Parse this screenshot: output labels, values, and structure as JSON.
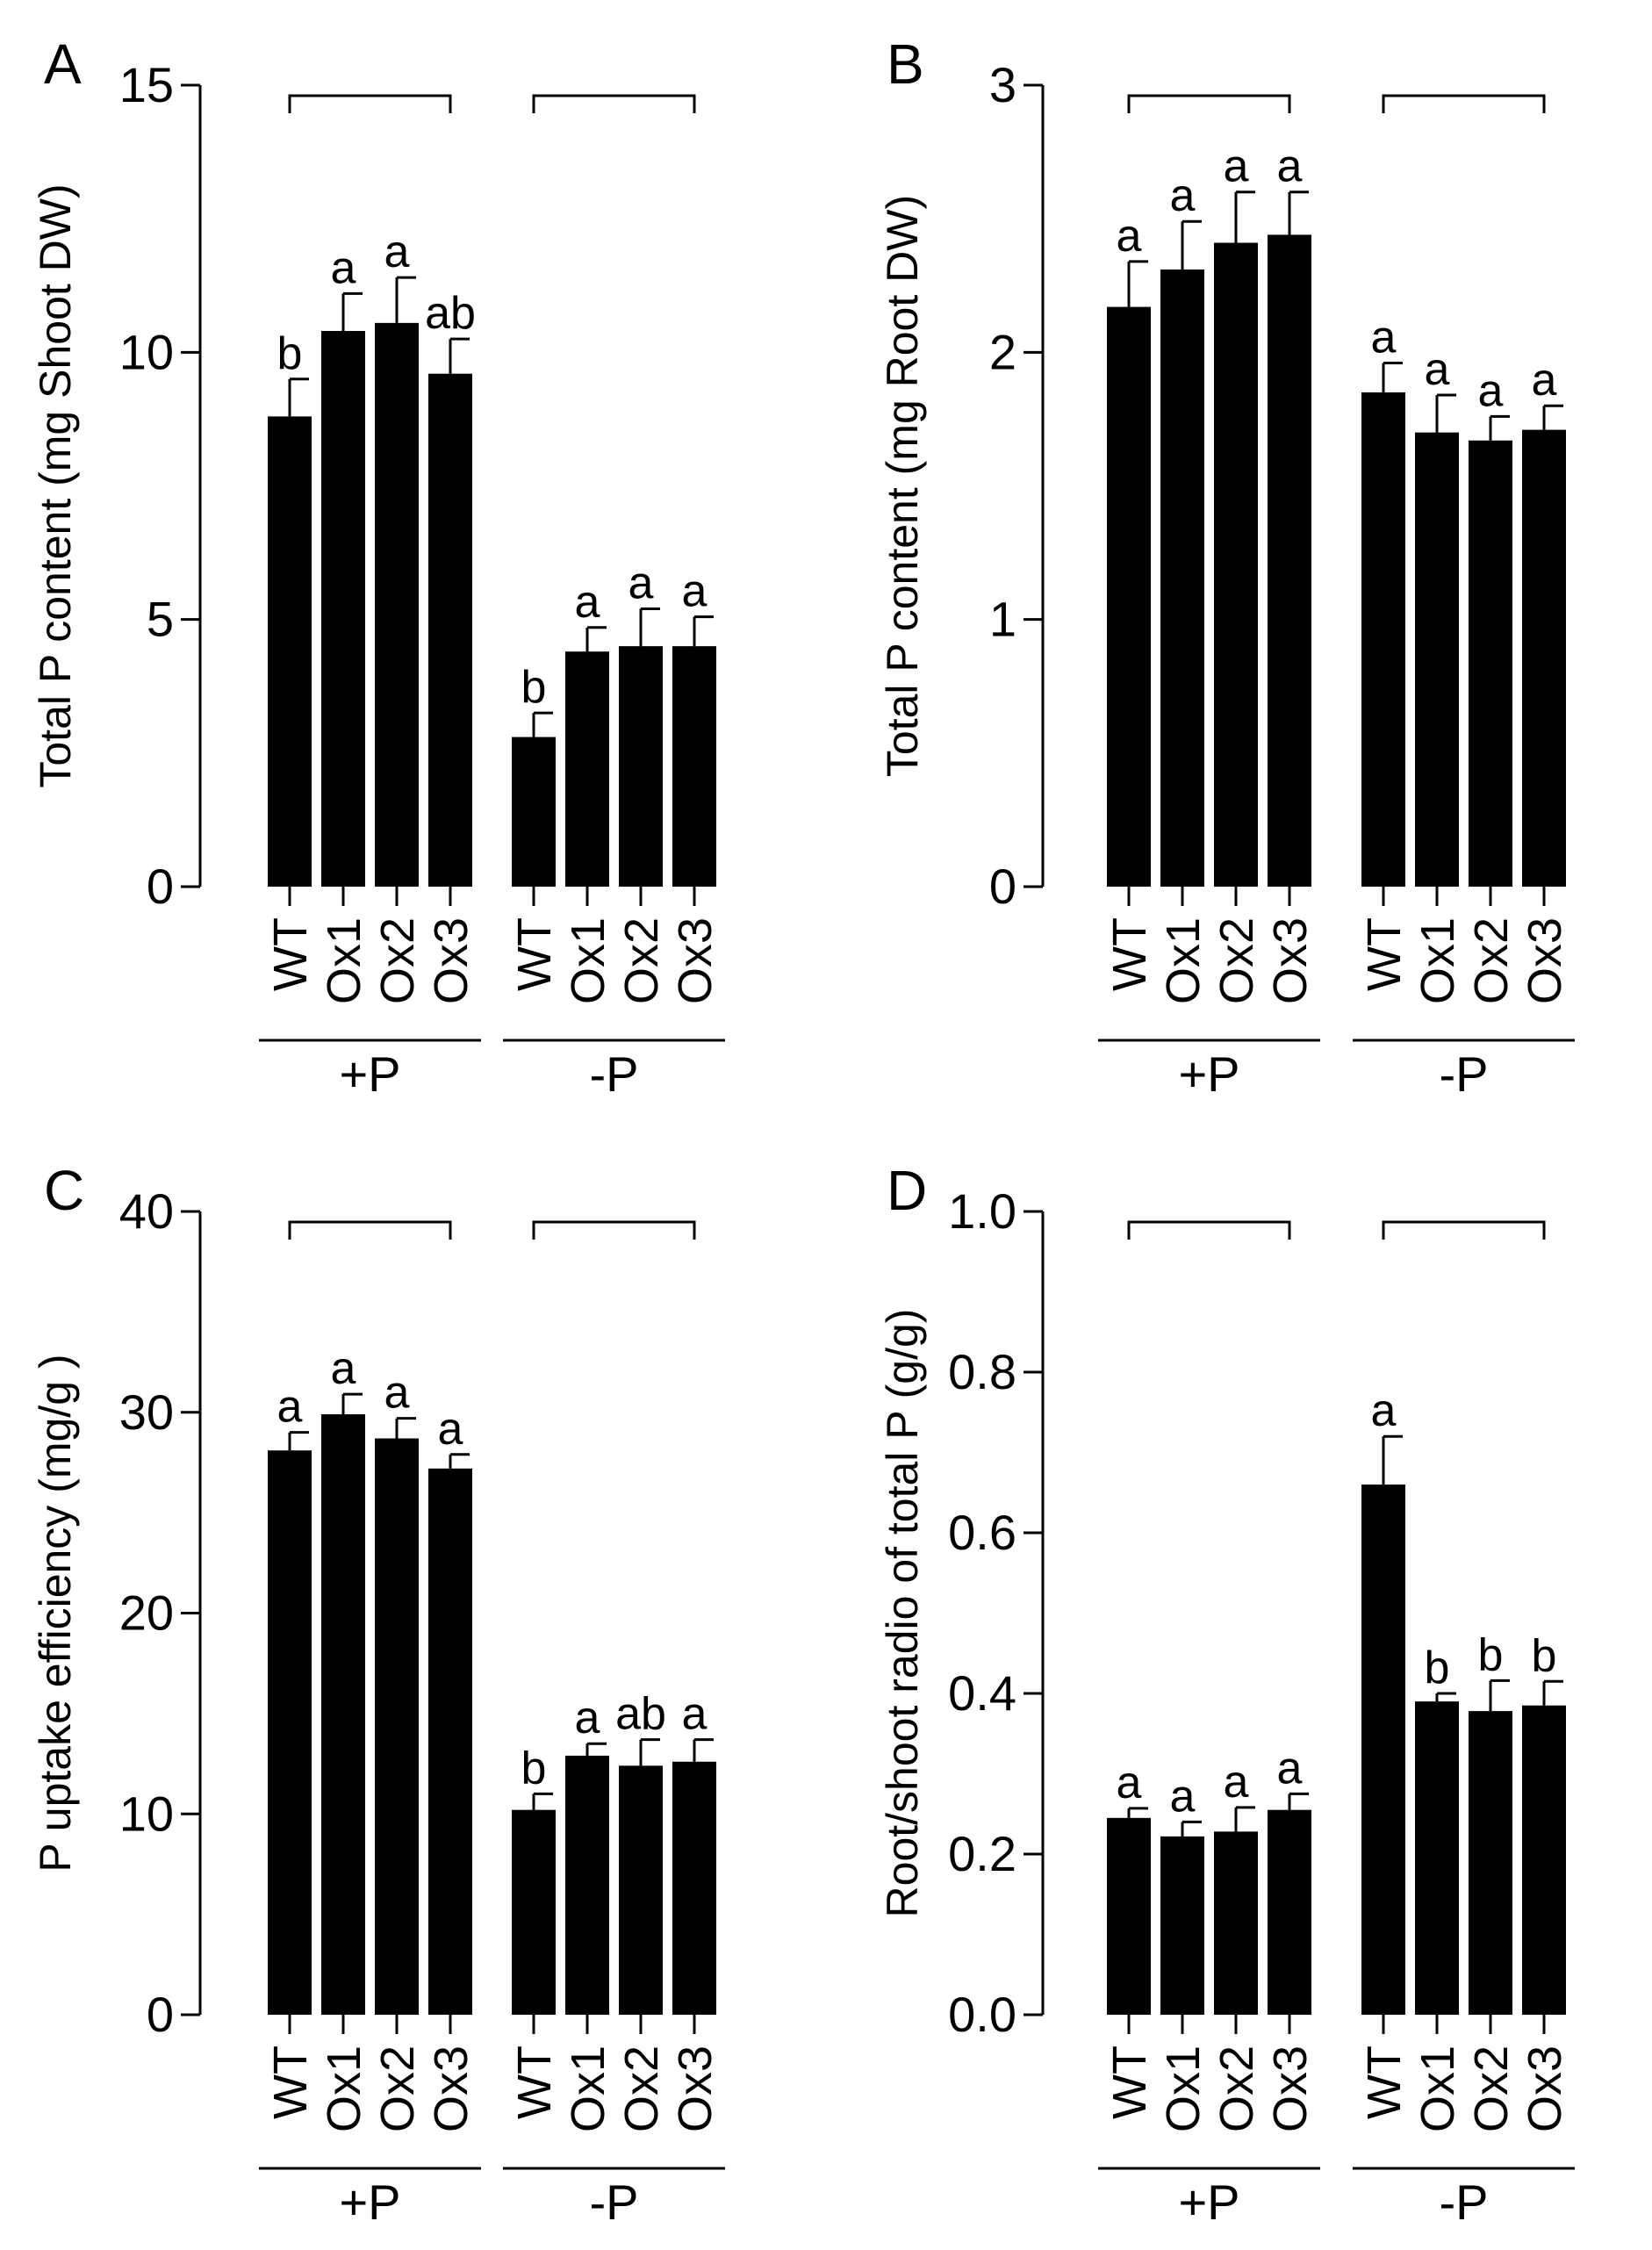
{
  "chart_data": [
    {
      "type": "bar",
      "panel": "A",
      "ylabel": "Total P content (mg Shoot DW)",
      "ylim": [
        0,
        15
      ],
      "yticks": [
        0,
        5,
        10,
        15
      ],
      "ytick_labels": [
        "0",
        "5",
        "10",
        "15"
      ],
      "groups": [
        {
          "label": "+P",
          "categories": [
            "WT",
            "Ox1",
            "Ox2",
            "Ox3"
          ],
          "values": [
            8.8,
            10.4,
            10.55,
            9.6
          ],
          "errors": [
            0.7,
            0.7,
            0.85,
            0.65
          ],
          "letters": [
            "b",
            "a",
            "a",
            "ab"
          ]
        },
        {
          "label": "-P",
          "categories": [
            "WT",
            "Ox1",
            "Ox2",
            "Ox3"
          ],
          "values": [
            2.8,
            4.4,
            4.5,
            4.5
          ],
          "errors": [
            0.45,
            0.45,
            0.7,
            0.55
          ],
          "letters": [
            "b",
            "a",
            "a",
            "a"
          ]
        }
      ]
    },
    {
      "type": "bar",
      "panel": "B",
      "ylabel": "Total P content (mg Root DW)",
      "ylim": [
        0,
        3
      ],
      "yticks": [
        0,
        1,
        2,
        3
      ],
      "ytick_labels": [
        "0",
        "1",
        "2",
        "3"
      ],
      "groups": [
        {
          "label": "+P",
          "categories": [
            "WT",
            "Ox1",
            "Ox2",
            "Ox3"
          ],
          "values": [
            2.17,
            2.31,
            2.41,
            2.44
          ],
          "errors": [
            0.17,
            0.18,
            0.19,
            0.16
          ],
          "letters": [
            "a",
            "a",
            "a",
            "a"
          ]
        },
        {
          "label": "-P",
          "categories": [
            "WT",
            "Ox1",
            "Ox2",
            "Ox3"
          ],
          "values": [
            1.85,
            1.7,
            1.67,
            1.71
          ],
          "errors": [
            0.11,
            0.14,
            0.09,
            0.09
          ],
          "letters": [
            "a",
            "a",
            "a",
            "a"
          ]
        }
      ]
    },
    {
      "type": "bar",
      "panel": "C",
      "ylabel": "P uptake efficiency (mg/g )",
      "ylim": [
        0,
        40
      ],
      "yticks": [
        0,
        10,
        20,
        30,
        40
      ],
      "ytick_labels": [
        "0",
        "10",
        "20",
        "30",
        "40"
      ],
      "groups": [
        {
          "label": "+P",
          "categories": [
            "WT",
            "Ox1",
            "Ox2",
            "Ox3"
          ],
          "values": [
            28.1,
            29.9,
            28.7,
            27.2
          ],
          "errors": [
            0.9,
            1.0,
            1.0,
            0.7
          ],
          "letters": [
            "a",
            "a",
            "a",
            "a"
          ]
        },
        {
          "label": "-P",
          "categories": [
            "WT",
            "Ox1",
            "Ox2",
            "Ox3"
          ],
          "values": [
            10.2,
            12.9,
            12.4,
            12.6
          ],
          "errors": [
            0.8,
            0.6,
            1.3,
            1.1
          ],
          "letters": [
            "b",
            "a",
            "ab",
            "a"
          ]
        }
      ]
    },
    {
      "type": "bar",
      "panel": "D",
      "ylabel": "Root/shoot radio of total P (g/g)",
      "ylim": [
        0,
        1.0
      ],
      "yticks": [
        0,
        0.2,
        0.4,
        0.6,
        0.8,
        1.0
      ],
      "ytick_labels": [
        "0.0",
        "0.2",
        "0.4",
        "0.6",
        "0.8",
        "1.0"
      ],
      "groups": [
        {
          "label": "+P",
          "categories": [
            "WT",
            "Ox1",
            "Ox2",
            "Ox3"
          ],
          "values": [
            0.245,
            0.222,
            0.228,
            0.255
          ],
          "errors": [
            0.012,
            0.018,
            0.03,
            0.02
          ],
          "letters": [
            "a",
            "a",
            "a",
            "a"
          ]
        },
        {
          "label": "-P",
          "categories": [
            "WT",
            "Ox1",
            "Ox2",
            "Ox3"
          ],
          "values": [
            0.66,
            0.39,
            0.378,
            0.385
          ],
          "errors": [
            0.06,
            0.01,
            0.038,
            0.03
          ],
          "letters": [
            "a",
            "b",
            "b",
            "b"
          ]
        }
      ]
    }
  ]
}
